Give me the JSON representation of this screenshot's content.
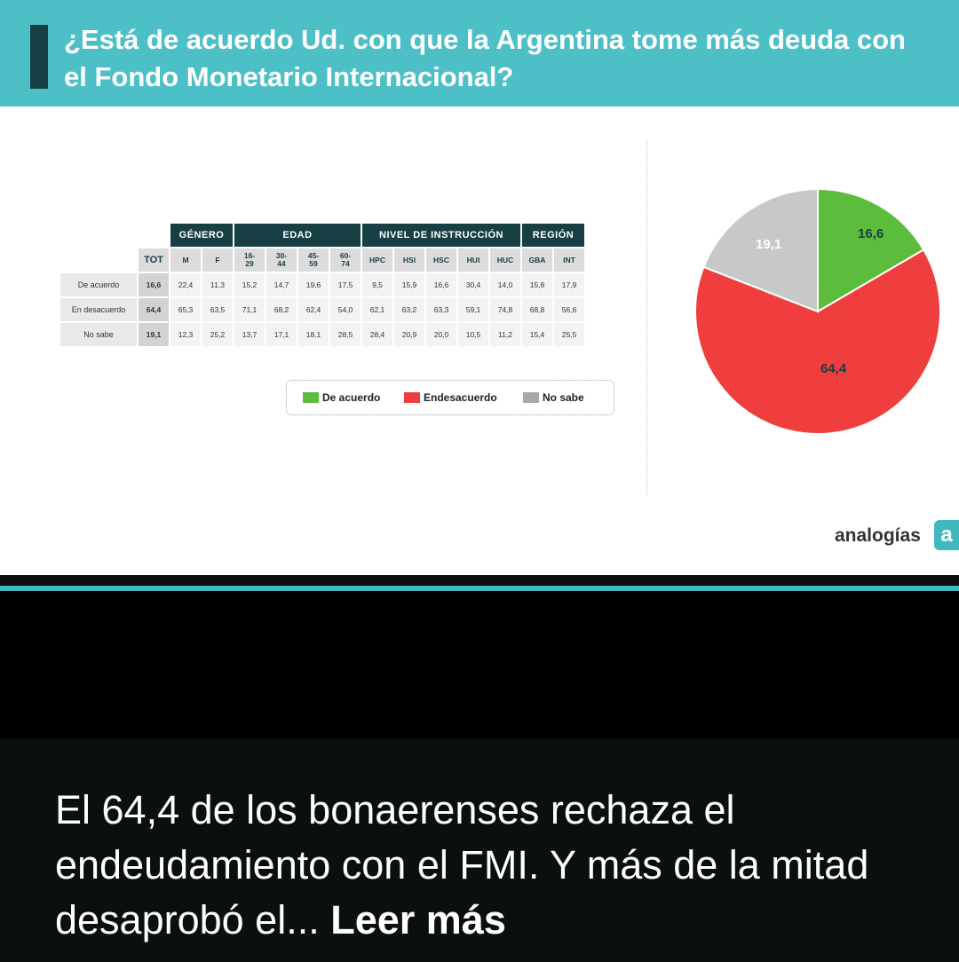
{
  "title": "¿Está de acuerdo Ud. con que la Argentina tome más deuda con el Fondo Monetario Internacional?",
  "caption": {
    "text": "El 64,4 de los bonaerenses rechaza el endeudamiento con el FMI. Y más de la mitad desaprobó el...",
    "more": "Leer más"
  },
  "brand": {
    "name": "analogías",
    "badge": "a"
  },
  "colors": {
    "teal": "#4dbfc7",
    "dark_teal": "#173f44",
    "de_acuerdo": "#5cbd3c",
    "en_desacuerdo": "#f03e3e",
    "no_sabe": "#c8c8c8"
  },
  "table": {
    "groups": [
      {
        "label": "GÉNERO",
        "span": 2
      },
      {
        "label": "EDAD",
        "span": 4
      },
      {
        "label": "NIVEL DE INSTRUCCIÓN",
        "span": 5
      },
      {
        "label": "REGIÓN",
        "span": 2
      }
    ],
    "columns": [
      "TOT",
      "M",
      "F",
      "16-\n29",
      "30-\n44",
      "45-\n59",
      "60-\n74",
      "HPC",
      "HSI",
      "HSC",
      "HUI",
      "HUC",
      "GBA",
      "INT"
    ],
    "rows": [
      {
        "label": "De acuerdo",
        "values": [
          "16,6",
          "22,4",
          "11,3",
          "15,2",
          "14,7",
          "19,6",
          "17,5",
          "9,5",
          "15,9",
          "16,6",
          "30,4",
          "14,0",
          "15,8",
          "17,9"
        ]
      },
      {
        "label": "En desacuerdo",
        "values": [
          "64,4",
          "65,3",
          "63,5",
          "71,1",
          "68,2",
          "62,4",
          "54,0",
          "62,1",
          "63,2",
          "63,3",
          "59,1",
          "74,8",
          "68,8",
          "56,6"
        ]
      },
      {
        "label": "No sabe",
        "values": [
          "19,1",
          "12,3",
          "25,2",
          "13,7",
          "17,1",
          "18,1",
          "28,5",
          "28,4",
          "20,9",
          "20,0",
          "10,5",
          "11,2",
          "15,4",
          "25,5"
        ]
      }
    ]
  },
  "legend": [
    {
      "label": "De acuerdo",
      "color": "#5cbd3c"
    },
    {
      "label": "Endesacuerdo",
      "color": "#f03e3e"
    },
    {
      "label": "No sabe",
      "color": "#a9a9a9"
    }
  ],
  "chart_data": {
    "type": "pie",
    "slices": [
      {
        "label": "De acuerdo",
        "value": 16.6,
        "display": "16,6",
        "color": "#5cbd3c"
      },
      {
        "label": "Endesacuerdo",
        "value": 64.4,
        "display": "64,4",
        "color": "#f03e3e"
      },
      {
        "label": "No sabe",
        "value": 19.1,
        "display": "19,1",
        "color": "#c8c8c8"
      }
    ],
    "start": "12 o'clock",
    "direction": "clockwise"
  }
}
